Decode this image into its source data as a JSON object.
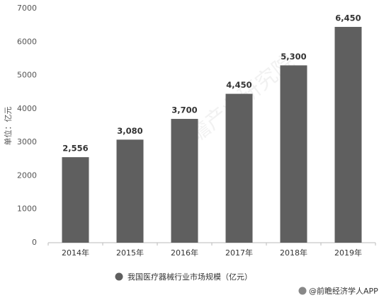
{
  "chart_data": {
    "type": "bar",
    "y_axis_label": "单位：亿元",
    "categories": [
      "2014年",
      "2015年",
      "2016年",
      "2017年",
      "2018年",
      "2019年"
    ],
    "series": [
      {
        "name": "我国医疗器械行业市场规模（亿元）",
        "color": "#5f5f5f",
        "values": [
          2556,
          3080,
          3700,
          4450,
          5300,
          6450
        ],
        "value_labels": [
          "2,556",
          "3,080",
          "3,700",
          "4,450",
          "5,300",
          "6,450"
        ]
      }
    ],
    "ylim": [
      0,
      7000
    ],
    "yticks": [
      0,
      1000,
      2000,
      3000,
      4000,
      5000,
      6000,
      7000
    ],
    "grid": false,
    "watermark": "前瞻产业研究院",
    "source": "@前瞻经济学人APP"
  }
}
